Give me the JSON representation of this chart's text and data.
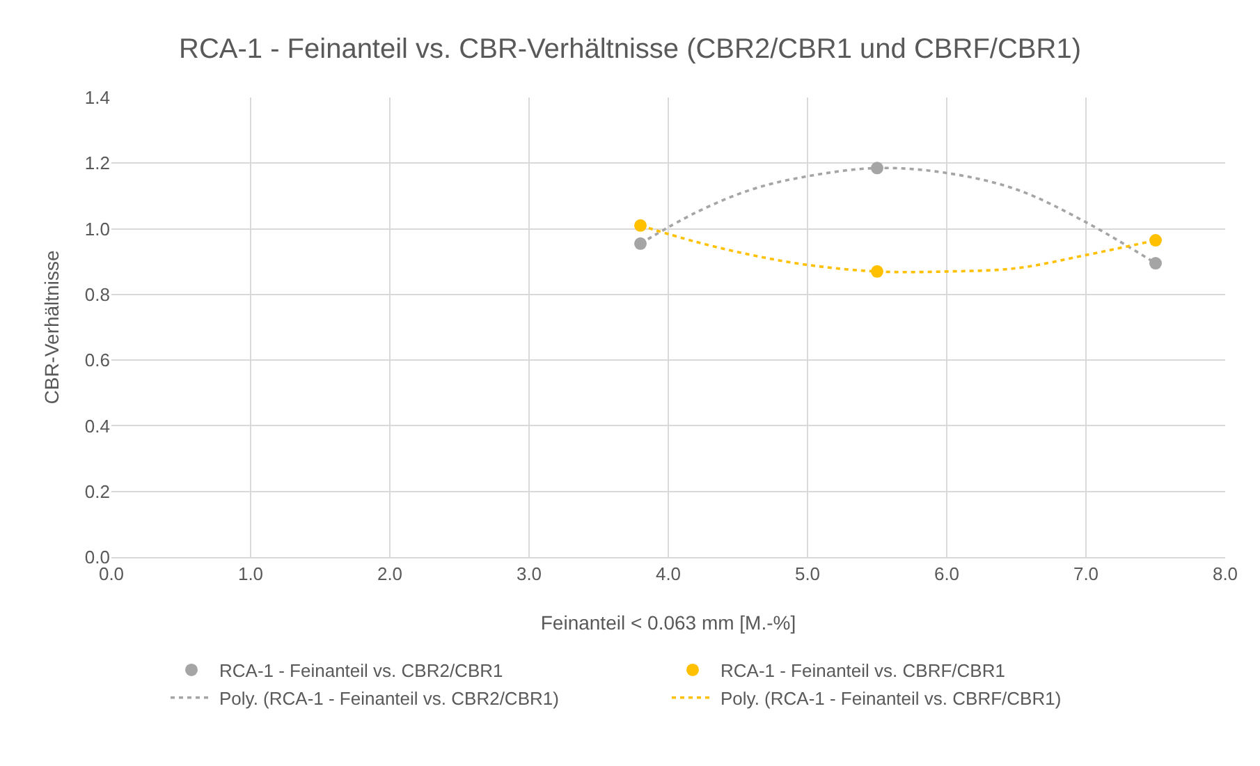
{
  "chart_data": {
    "type": "scatter",
    "title": "RCA-1 - Feinanteil vs. CBR-Verhältnisse (CBR2/CBR1 und CBRF/CBR1)",
    "xlabel": "Feinanteil < 0.063 mm [M.-%]",
    "ylabel": "CBR-Verhältnisse",
    "xlim": [
      0,
      8
    ],
    "xticks": [
      {
        "value": 0,
        "label": "0.0"
      },
      {
        "value": 1,
        "label": "1.0"
      },
      {
        "value": 2,
        "label": "2.0"
      },
      {
        "value": 3,
        "label": "3.0"
      },
      {
        "value": 4,
        "label": "4.0"
      },
      {
        "value": 5,
        "label": "5.0"
      },
      {
        "value": 6,
        "label": "6.0"
      },
      {
        "value": 7,
        "label": "7.0"
      },
      {
        "value": 8,
        "label": "8.0"
      }
    ],
    "ylim": [
      0,
      1.4
    ],
    "yticks": [
      {
        "value": 0,
        "label": "0.0"
      },
      {
        "value": 0.2,
        "label": "0.2"
      },
      {
        "value": 0.4,
        "label": "0.4"
      },
      {
        "value": 0.6,
        "label": "0.6"
      },
      {
        "value": 0.8,
        "label": "0.8"
      },
      {
        "value": 1,
        "label": "1.0"
      },
      {
        "value": 1.2,
        "label": "1.2"
      },
      {
        "value": 1.4,
        "label": "1.4"
      }
    ],
    "grid": true,
    "legend": "bottom",
    "marker": "circle",
    "x": [
      3.8,
      5.5,
      7.5
    ],
    "series": [
      {
        "name": "RCA-1 - Feinanteil vs. CBR2/CBR1",
        "color": "#a5a5a5",
        "values": [
          0.955,
          1.185,
          0.895
        ]
      },
      {
        "name": "RCA-1 - Feinanteil vs. CBRF/CBR1",
        "color": "#ffc000",
        "values": [
          1.01,
          0.87,
          0.965
        ]
      },
      {
        "name": "Poly. (RCA-1 - Feinanteil vs. CBR2/CBR1)",
        "type": "line",
        "line_style": "dotted",
        "marker": "none",
        "color": "#a5a5a5",
        "x": [
          3.8,
          4.2,
          4.6,
          5.0,
          5.5,
          6.0,
          6.5,
          7.0,
          7.5
        ],
        "values": [
          0.955,
          1.05,
          1.12,
          1.16,
          1.185,
          1.17,
          1.12,
          1.02,
          0.895
        ]
      },
      {
        "name": "Poly. (RCA-1 - Feinanteil vs. CBRF/CBR1)",
        "type": "line",
        "line_style": "dotted",
        "marker": "none",
        "color": "#ffc000",
        "x": [
          3.8,
          4.2,
          4.6,
          5.0,
          5.5,
          6.0,
          6.5,
          7.0,
          7.5
        ],
        "values": [
          1.01,
          0.96,
          0.92,
          0.89,
          0.87,
          0.87,
          0.88,
          0.92,
          0.965
        ]
      }
    ]
  }
}
